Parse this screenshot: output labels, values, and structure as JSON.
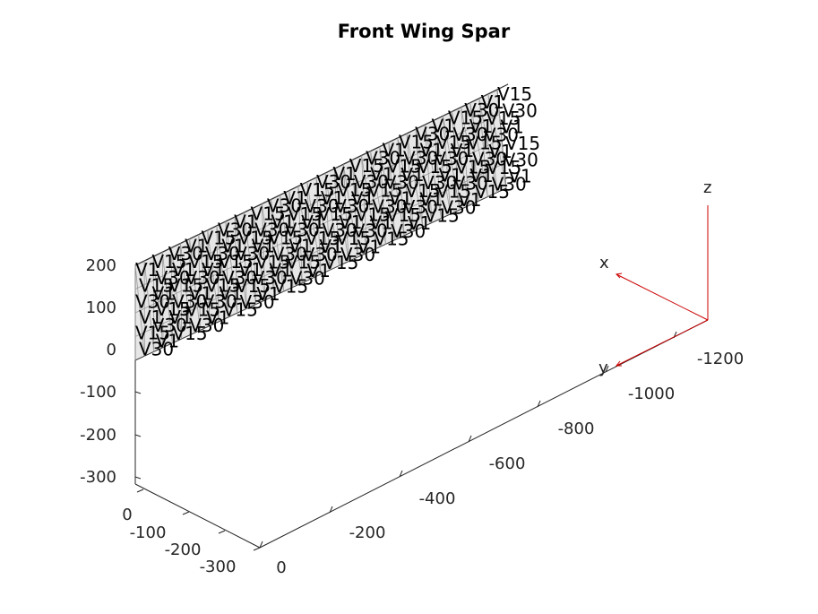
{
  "chart_data": {
    "type": "3d-mesh",
    "title": "Front Wing Spar",
    "axes": {
      "x": {
        "ticks": [
          "0",
          "-100",
          "-200",
          "-300"
        ]
      },
      "y": {
        "ticks": [
          "0",
          "-200",
          "-400",
          "-600",
          "-800",
          "-1000",
          "-1200"
        ]
      },
      "z": {
        "ticks": [
          "200",
          "100",
          "0",
          "-100",
          "-200",
          "-300"
        ]
      }
    },
    "triad": {
      "labels": [
        "x",
        "y",
        "z"
      ],
      "color": "#cc0000"
    },
    "vertex_labels_visible": [
      "V1",
      "V15",
      "V30"
    ],
    "mesh_color": "#9a9a9a",
    "grid": false
  }
}
